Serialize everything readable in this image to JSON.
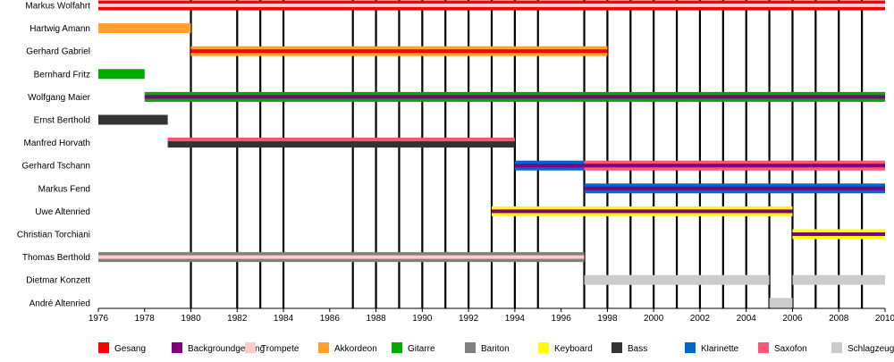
{
  "chart_data": {
    "type": "timeline",
    "title": "",
    "xlabel": "",
    "ylabel": "",
    "xlim": [
      1976,
      2010
    ],
    "x_ticks": [
      "1976",
      "1978",
      "1980",
      "1982",
      "1984",
      "1986",
      "1988",
      "1990",
      "1992",
      "1994",
      "1996",
      "1998",
      "2000",
      "2002",
      "2004",
      "2006",
      "2008",
      "2010"
    ],
    "event_lines": [
      1980,
      1982,
      1983,
      1984,
      1987,
      1988,
      1989,
      1990,
      1991,
      1992,
      1993,
      1994,
      1995,
      1997,
      1998,
      1999,
      2000,
      2001,
      2002,
      2003,
      2004,
      2005,
      2006,
      2007,
      2008,
      2009
    ],
    "colors": {
      "Gesang": "#ff0000",
      "Backgroundgesang": "#800080",
      "Trompete": "#ffcccc",
      "Akkordeon": "#ffa030",
      "Gitarre": "#00aa00",
      "Bariton": "#808080",
      "Keyboard": "#ffff00",
      "Bass": "#333333",
      "Klarinette": "#0066cc",
      "Saxofon": "#ff5577",
      "Schlagzeug": "#cccccc"
    },
    "members": [
      {
        "name": "Markus Wolfahrt",
        "bars": [
          {
            "start": 1976,
            "end": 2010,
            "role": "Gesang",
            "stripe": "Trompete"
          }
        ]
      },
      {
        "name": "Hartwig Amann",
        "bars": [
          {
            "start": 1976,
            "end": 1980,
            "role": "Akkordeon"
          }
        ]
      },
      {
        "name": "Gerhard Gabriel",
        "bars": [
          {
            "start": 1980,
            "end": 1998,
            "role": "Akkordeon",
            "stripe": "Gesang"
          }
        ]
      },
      {
        "name": "Bernhard Fritz",
        "bars": [
          {
            "start": 1976,
            "end": 1978,
            "role": "Gitarre"
          }
        ]
      },
      {
        "name": "Wolfgang Maier",
        "bars": [
          {
            "start": 1978,
            "end": 2010,
            "role": "Gitarre",
            "stripe": "Backgroundgesang"
          }
        ]
      },
      {
        "name": "Ernst Berthold",
        "bars": [
          {
            "start": 1976,
            "end": 1979,
            "role": "Bass"
          }
        ]
      },
      {
        "name": "Manfred Horvath",
        "bars": [
          {
            "start": 1979,
            "end": 1994,
            "role": "Bass",
            "top": "Saxofon"
          }
        ]
      },
      {
        "name": "Gerhard Tschann",
        "bars": [
          {
            "start": 1994,
            "end": 1997,
            "role": "Klarinette",
            "stripe": "Backgroundgesang"
          },
          {
            "start": 1997,
            "end": 2010,
            "role": "Saxofon",
            "stripe": "Backgroundgesang"
          }
        ]
      },
      {
        "name": "Markus Fend",
        "bars": [
          {
            "start": 1997,
            "end": 2010,
            "role": "Klarinette",
            "stripe": "Backgroundgesang"
          }
        ]
      },
      {
        "name": "Uwe Altenried",
        "bars": [
          {
            "start": 1993,
            "end": 1997,
            "role": "Keyboard",
            "stripe": "Backgroundgesang"
          },
          {
            "start": 1997,
            "end": 2006,
            "role": "Keyboard",
            "stripe": "Backgroundgesang"
          }
        ]
      },
      {
        "name": "Christian Torchiani",
        "bars": [
          {
            "start": 2006,
            "end": 2010,
            "role": "Keyboard",
            "stripe": "Backgroundgesang"
          }
        ]
      },
      {
        "name": "Thomas Berthold",
        "bars": [
          {
            "start": 1976,
            "end": 1997,
            "role": "Bariton",
            "stripe": "Trompete"
          }
        ]
      },
      {
        "name": "Dietmar Konzett",
        "bars": [
          {
            "start": 1997,
            "end": 2005,
            "role": "Schlagzeug"
          },
          {
            "start": 2006,
            "end": 2010,
            "role": "Schlagzeug"
          }
        ]
      },
      {
        "name": "André Altenried",
        "bars": [
          {
            "start": 2005,
            "end": 2006,
            "role": "Schlagzeug"
          }
        ]
      }
    ],
    "legend": [
      {
        "label": "Gesang",
        "color": "#ff0000"
      },
      {
        "label": "Backgroundgesang",
        "color": "#800080"
      },
      {
        "label": "Trompete",
        "color": "#ffcccc"
      },
      {
        "label": "Akkordeon",
        "color": "#ffa030"
      },
      {
        "label": "Gitarre",
        "color": "#00aa00"
      },
      {
        "label": "Bariton",
        "color": "#808080"
      },
      {
        "label": "Keyboard",
        "color": "#ffff00"
      },
      {
        "label": "Bass",
        "color": "#333333"
      },
      {
        "label": "Klarinette",
        "color": "#0066cc"
      },
      {
        "label": "Saxofon",
        "color": "#ff5577"
      },
      {
        "label": "Schlagzeug",
        "color": "#cccccc"
      }
    ]
  }
}
